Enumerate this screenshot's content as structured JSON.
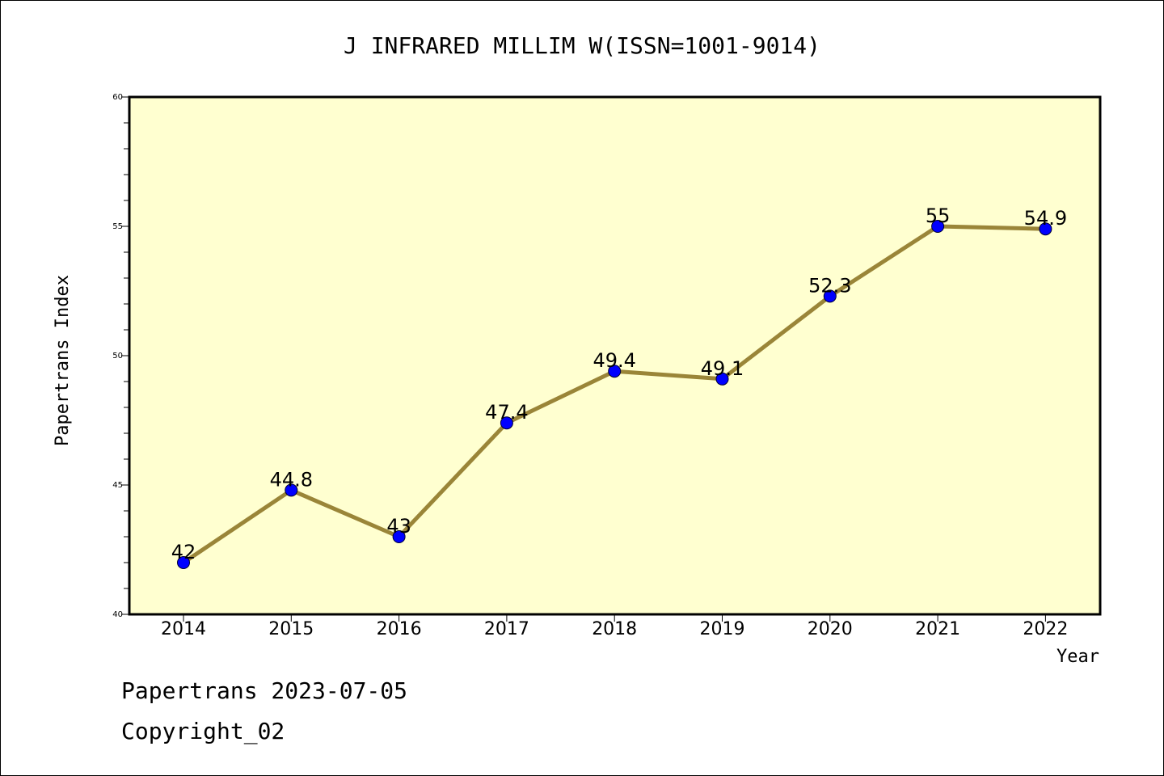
{
  "chart_data": {
    "type": "line",
    "title": "J INFRARED MILLIM W(ISSN=1001-9014)",
    "xlabel": "Year",
    "ylabel": "Papertrans Index",
    "categories": [
      "2014",
      "2015",
      "2016",
      "2017",
      "2018",
      "2019",
      "2020",
      "2021",
      "2022"
    ],
    "series": [
      {
        "values": [
          42,
          44.8,
          43,
          47.4,
          49.4,
          49.1,
          52.3,
          55,
          54.9
        ],
        "labels": [
          "42",
          "44.8",
          "43",
          "47.4",
          "49.4",
          "49.1",
          "52.3",
          "55",
          "54.9"
        ]
      }
    ],
    "ylim": [
      40,
      60
    ],
    "yticks": [
      "40",
      "45",
      "50",
      "55",
      "60"
    ],
    "grid": false,
    "legend": "none",
    "colors": {
      "plot_background": "#ffffd0",
      "line": "#9a8538",
      "marker": "#0000ff"
    }
  },
  "footer": {
    "line1": "Papertrans 2023-07-05",
    "line2": "Copyright_02"
  }
}
